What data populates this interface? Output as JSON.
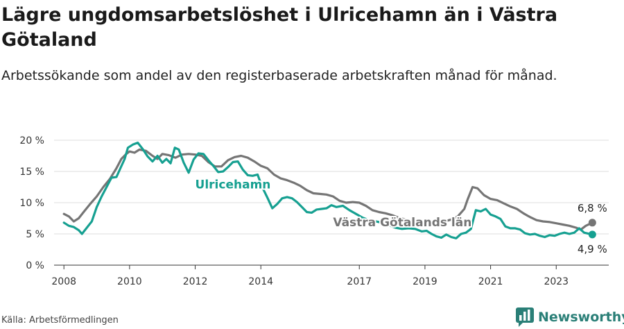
{
  "title": "Lägre ungdomsarbetslöshet i Ulricehamn än i Västra Götaland",
  "subtitle": "Arbetssökande som andel av den registerbaserade arbetskraften månad för månad.",
  "source": "Källa: Arbetsförmedlingen",
  "brand": {
    "name": "Newsworthy",
    "icon": "newsworthy-logo-icon",
    "color": "#2a7f77"
  },
  "chart_data": {
    "type": "line",
    "title": "Lägre ungdomsarbetslöshet i Ulricehamn än i Västra Götaland",
    "xlabel": "",
    "ylabel": "",
    "xlim": [
      2007.7,
      2024.6
    ],
    "ylim": [
      0,
      20
    ],
    "grid": true,
    "x_ticks": [
      2008,
      2010,
      2012,
      2014,
      2017,
      2019,
      2021,
      2023
    ],
    "x_tick_labels": [
      "2008",
      "2010",
      "2012",
      "2014",
      "2017",
      "2019",
      "2021",
      "2023"
    ],
    "y_ticks": [
      0,
      5,
      10,
      15,
      20
    ],
    "y_tick_labels": [
      "0 %",
      "5 %",
      "10 %",
      "15 %",
      "20 %"
    ],
    "series": [
      {
        "name": "Västra Götalands län",
        "color": "#757575",
        "label_text": "Västra Götalands län",
        "end_label": "6,8 %",
        "points": [
          [
            2008.0,
            8.2
          ],
          [
            2008.15,
            7.8
          ],
          [
            2008.3,
            7.0
          ],
          [
            2008.45,
            7.5
          ],
          [
            2008.6,
            8.5
          ],
          [
            2008.8,
            9.8
          ],
          [
            2009.0,
            11.0
          ],
          [
            2009.2,
            12.5
          ],
          [
            2009.4,
            13.8
          ],
          [
            2009.6,
            15.5
          ],
          [
            2009.75,
            17.0
          ],
          [
            2009.9,
            17.8
          ],
          [
            2010.0,
            18.2
          ],
          [
            2010.15,
            18.0
          ],
          [
            2010.3,
            18.5
          ],
          [
            2010.5,
            18.3
          ],
          [
            2010.7,
            17.5
          ],
          [
            2010.85,
            17.0
          ],
          [
            2011.0,
            17.8
          ],
          [
            2011.2,
            17.6
          ],
          [
            2011.4,
            17.2
          ],
          [
            2011.6,
            17.7
          ],
          [
            2011.8,
            17.8
          ],
          [
            2012.0,
            17.7
          ],
          [
            2012.2,
            17.5
          ],
          [
            2012.4,
            16.5
          ],
          [
            2012.6,
            15.8
          ],
          [
            2012.8,
            15.8
          ],
          [
            2013.0,
            16.8
          ],
          [
            2013.2,
            17.3
          ],
          [
            2013.4,
            17.5
          ],
          [
            2013.6,
            17.2
          ],
          [
            2013.8,
            16.6
          ],
          [
            2014.0,
            15.9
          ],
          [
            2014.2,
            15.5
          ],
          [
            2014.4,
            14.5
          ],
          [
            2014.6,
            13.9
          ],
          [
            2014.8,
            13.6
          ],
          [
            2015.0,
            13.2
          ],
          [
            2015.2,
            12.7
          ],
          [
            2015.4,
            12.0
          ],
          [
            2015.6,
            11.5
          ],
          [
            2015.8,
            11.4
          ],
          [
            2016.0,
            11.3
          ],
          [
            2016.2,
            11.0
          ],
          [
            2016.4,
            10.3
          ],
          [
            2016.6,
            10.0
          ],
          [
            2016.8,
            10.1
          ],
          [
            2017.0,
            10.0
          ],
          [
            2017.2,
            9.5
          ],
          [
            2017.4,
            8.8
          ],
          [
            2017.6,
            8.5
          ],
          [
            2017.8,
            8.3
          ],
          [
            2018.0,
            8.0
          ],
          [
            2018.2,
            7.6
          ],
          [
            2018.4,
            7.3
          ],
          [
            2018.6,
            7.0
          ],
          [
            2018.8,
            6.9
          ],
          [
            2019.0,
            6.8
          ],
          [
            2019.2,
            6.8
          ],
          [
            2019.4,
            6.9
          ],
          [
            2019.6,
            7.0
          ],
          [
            2019.8,
            7.3
          ],
          [
            2020.0,
            7.8
          ],
          [
            2020.2,
            9.0
          ],
          [
            2020.3,
            10.5
          ],
          [
            2020.45,
            12.5
          ],
          [
            2020.6,
            12.3
          ],
          [
            2020.8,
            11.2
          ],
          [
            2021.0,
            10.6
          ],
          [
            2021.2,
            10.4
          ],
          [
            2021.4,
            9.9
          ],
          [
            2021.6,
            9.4
          ],
          [
            2021.8,
            9.0
          ],
          [
            2022.0,
            8.3
          ],
          [
            2022.2,
            7.7
          ],
          [
            2022.4,
            7.2
          ],
          [
            2022.6,
            7.0
          ],
          [
            2022.8,
            6.9
          ],
          [
            2023.0,
            6.7
          ],
          [
            2023.2,
            6.5
          ],
          [
            2023.4,
            6.3
          ],
          [
            2023.6,
            6.0
          ],
          [
            2023.75,
            5.7
          ],
          [
            2023.9,
            6.3
          ],
          [
            2024.1,
            6.8
          ]
        ]
      },
      {
        "name": "Ulricehamn",
        "color": "#16a091",
        "label_text": "Ulricehamn",
        "end_label": "4,9 %",
        "points": [
          [
            2008.0,
            6.8
          ],
          [
            2008.15,
            6.3
          ],
          [
            2008.3,
            6.1
          ],
          [
            2008.45,
            5.6
          ],
          [
            2008.55,
            5.0
          ],
          [
            2008.7,
            6.0
          ],
          [
            2008.85,
            7.0
          ],
          [
            2009.0,
            9.3
          ],
          [
            2009.15,
            11.0
          ],
          [
            2009.3,
            12.5
          ],
          [
            2009.45,
            14.0
          ],
          [
            2009.6,
            14.1
          ],
          [
            2009.72,
            15.5
          ],
          [
            2009.85,
            17.0
          ],
          [
            2009.95,
            18.8
          ],
          [
            2010.1,
            19.3
          ],
          [
            2010.25,
            19.6
          ],
          [
            2010.4,
            18.6
          ],
          [
            2010.55,
            17.4
          ],
          [
            2010.7,
            16.6
          ],
          [
            2010.85,
            17.5
          ],
          [
            2011.0,
            16.4
          ],
          [
            2011.12,
            17.0
          ],
          [
            2011.25,
            16.3
          ],
          [
            2011.38,
            18.8
          ],
          [
            2011.5,
            18.5
          ],
          [
            2011.65,
            16.4
          ],
          [
            2011.8,
            14.8
          ],
          [
            2011.95,
            16.9
          ],
          [
            2012.1,
            17.9
          ],
          [
            2012.25,
            17.8
          ],
          [
            2012.4,
            16.8
          ],
          [
            2012.55,
            15.9
          ],
          [
            2012.7,
            14.9
          ],
          [
            2012.85,
            15.0
          ],
          [
            2013.0,
            15.7
          ],
          [
            2013.15,
            16.5
          ],
          [
            2013.3,
            16.6
          ],
          [
            2013.45,
            15.3
          ],
          [
            2013.6,
            14.4
          ],
          [
            2013.75,
            14.3
          ],
          [
            2013.9,
            14.5
          ],
          [
            2014.05,
            12.4
          ],
          [
            2014.2,
            10.8
          ],
          [
            2014.35,
            9.1
          ],
          [
            2014.5,
            9.8
          ],
          [
            2014.65,
            10.7
          ],
          [
            2014.8,
            10.9
          ],
          [
            2014.95,
            10.7
          ],
          [
            2015.1,
            10.1
          ],
          [
            2015.25,
            9.3
          ],
          [
            2015.4,
            8.5
          ],
          [
            2015.55,
            8.4
          ],
          [
            2015.7,
            8.9
          ],
          [
            2015.85,
            9.0
          ],
          [
            2016.0,
            9.1
          ],
          [
            2016.15,
            9.6
          ],
          [
            2016.3,
            9.3
          ],
          [
            2016.5,
            9.5
          ],
          [
            2016.7,
            8.8
          ],
          [
            2016.9,
            8.2
          ],
          [
            2017.1,
            7.6
          ],
          [
            2017.3,
            7.2
          ],
          [
            2017.5,
            7.0
          ],
          [
            2017.7,
            6.8
          ],
          [
            2017.9,
            6.4
          ],
          [
            2018.1,
            6.0
          ],
          [
            2018.3,
            5.8
          ],
          [
            2018.5,
            5.9
          ],
          [
            2018.7,
            5.8
          ],
          [
            2018.9,
            5.4
          ],
          [
            2019.05,
            5.5
          ],
          [
            2019.2,
            5.0
          ],
          [
            2019.35,
            4.6
          ],
          [
            2019.5,
            4.4
          ],
          [
            2019.65,
            4.9
          ],
          [
            2019.8,
            4.5
          ],
          [
            2019.95,
            4.3
          ],
          [
            2020.1,
            5.0
          ],
          [
            2020.25,
            5.2
          ],
          [
            2020.4,
            5.8
          ],
          [
            2020.55,
            8.8
          ],
          [
            2020.7,
            8.6
          ],
          [
            2020.85,
            9.0
          ],
          [
            2021.0,
            8.1
          ],
          [
            2021.15,
            7.8
          ],
          [
            2021.3,
            7.4
          ],
          [
            2021.45,
            6.2
          ],
          [
            2021.6,
            5.9
          ],
          [
            2021.75,
            5.9
          ],
          [
            2021.9,
            5.7
          ],
          [
            2022.05,
            5.1
          ],
          [
            2022.2,
            4.9
          ],
          [
            2022.35,
            5.0
          ],
          [
            2022.5,
            4.7
          ],
          [
            2022.65,
            4.5
          ],
          [
            2022.8,
            4.8
          ],
          [
            2022.95,
            4.7
          ],
          [
            2023.1,
            5.0
          ],
          [
            2023.25,
            5.2
          ],
          [
            2023.4,
            5.0
          ],
          [
            2023.55,
            5.2
          ],
          [
            2023.7,
            5.9
          ],
          [
            2023.85,
            5.2
          ],
          [
            2024.1,
            4.9
          ]
        ]
      }
    ]
  }
}
